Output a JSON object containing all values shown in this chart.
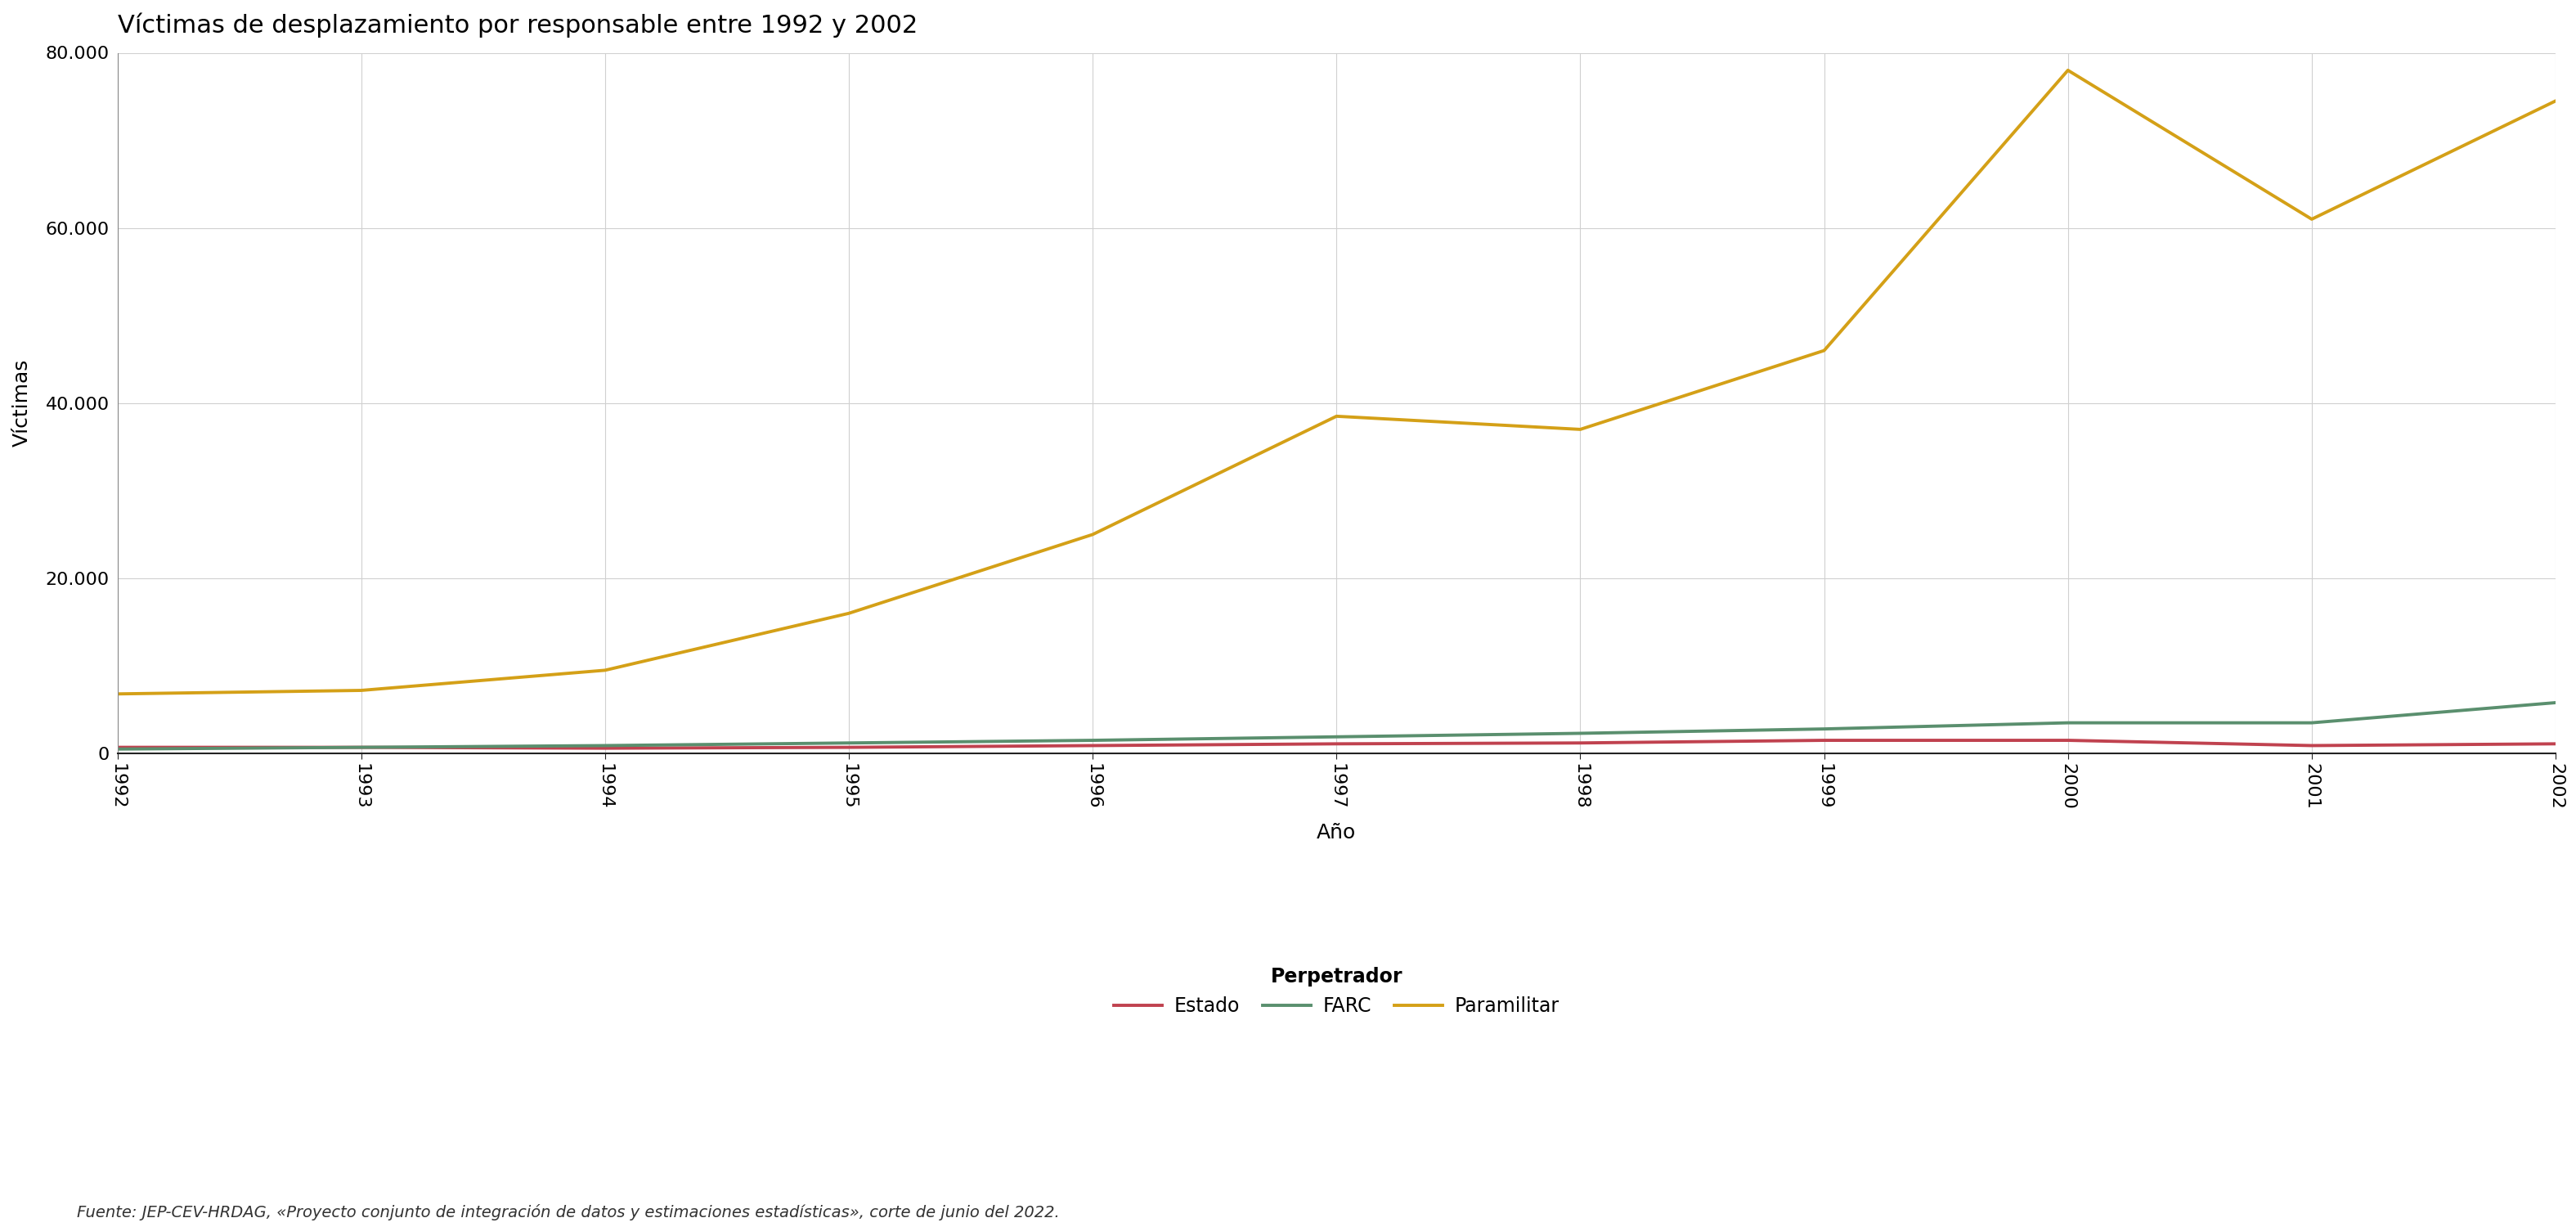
{
  "title": "Víctimas de desplazamiento por responsable entre 1992 y 2002",
  "xlabel": "Año",
  "ylabel": "Víctimas",
  "legend_title": "Perpetrador",
  "footer": "Fuente: JEP-CEV-HRDAG, «Proyecto conjunto de integración de datos y estimaciones estadísticas», corte de junio del 2022.",
  "years": [
    1992,
    1993,
    1994,
    1995,
    1996,
    1997,
    1998,
    1999,
    2000,
    2001,
    2002
  ],
  "estado": [
    700,
    700,
    600,
    700,
    900,
    1100,
    1200,
    1500,
    1500,
    900,
    1100
  ],
  "farc": [
    500,
    700,
    900,
    1200,
    1500,
    1900,
    2300,
    2800,
    3500,
    3500,
    5800
  ],
  "paramilitar": [
    6800,
    7200,
    9500,
    16000,
    25000,
    38500,
    37000,
    46000,
    78000,
    61000,
    74500
  ],
  "estado_color": "#c0424f",
  "farc_color": "#5a8f6e",
  "paramilitar_color": "#d4a017",
  "bg_color": "#ffffff",
  "plot_bg_color": "#ffffff",
  "grid_color": "#d0d0d0",
  "ylim": [
    0,
    80000
  ],
  "yticks": [
    0,
    20000,
    40000,
    60000,
    80000
  ],
  "title_fontsize": 22,
  "axis_label_fontsize": 18,
  "tick_fontsize": 16,
  "legend_fontsize": 17,
  "footer_fontsize": 14,
  "line_width": 2.8
}
